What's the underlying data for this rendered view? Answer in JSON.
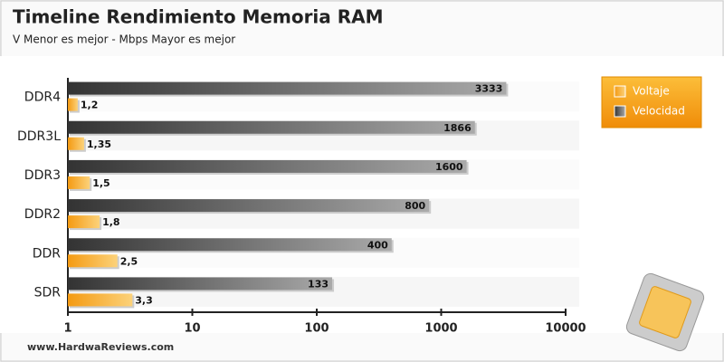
{
  "chart_data": {
    "type": "bar",
    "orientation": "horizontal",
    "title": "Timeline Rendimiento Memoria RAM",
    "subtitle": "V Menor es mejor - Mbps Mayor es mejor",
    "categories": [
      "DDR4",
      "DDR3L",
      "DDR3",
      "DDR2",
      "DDR",
      "SDR"
    ],
    "series": [
      {
        "name": "Voltaje",
        "color": "#f7a21b",
        "values": [
          1.2,
          1.35,
          1.5,
          1.8,
          2.5,
          3.3
        ],
        "value_labels": [
          "1,2",
          "1,35",
          "1,5",
          "1,8",
          "2,5",
          "3,3"
        ]
      },
      {
        "name": "Velocidad",
        "color": "#555555",
        "values": [
          3333,
          1866,
          1600,
          800,
          400,
          133
        ]
      }
    ],
    "xlim": [
      1,
      10000
    ],
    "xticks": [
      1,
      10,
      100,
      1000,
      10000
    ],
    "log_x": true,
    "legend": "top-right",
    "footer": "www.HardwaReviews.com"
  }
}
